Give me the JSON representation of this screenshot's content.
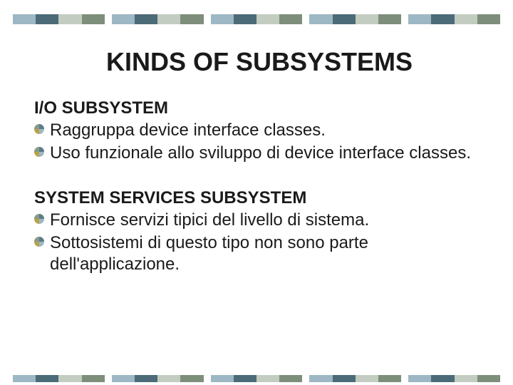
{
  "slide": {
    "title": "KINDS OF SUBSYSTEMS",
    "title_fontsize": 36,
    "title_color": "#1a1a1a",
    "body_fontsize": 24,
    "body_color": "#1a1a1a",
    "background_color": "#ffffff",
    "sections": [
      {
        "heading": "I/O SUBSYSTEM",
        "bullets": [
          "Raggruppa device interface classes.",
          "Uso funzionale allo sviluppo di device interface classes."
        ]
      },
      {
        "heading": "SYSTEM SERVICES SUBSYSTEM",
        "bullets": [
          "Fornisce servizi tipici del livello di sistema.",
          "Sottosistemi di questo tipo non sono  parte dell'applicazione."
        ]
      }
    ]
  },
  "decor": {
    "stripe_groups": 5,
    "segment_colors": [
      "#9db8c4",
      "#4c6b78",
      "#c3ccc0",
      "#7d8f7a"
    ],
    "bullet_svg": {
      "size": 14,
      "quadrants": [
        "#5a7b88",
        "#9db8c4",
        "#b8a24a",
        "#8a9a86"
      ]
    }
  }
}
